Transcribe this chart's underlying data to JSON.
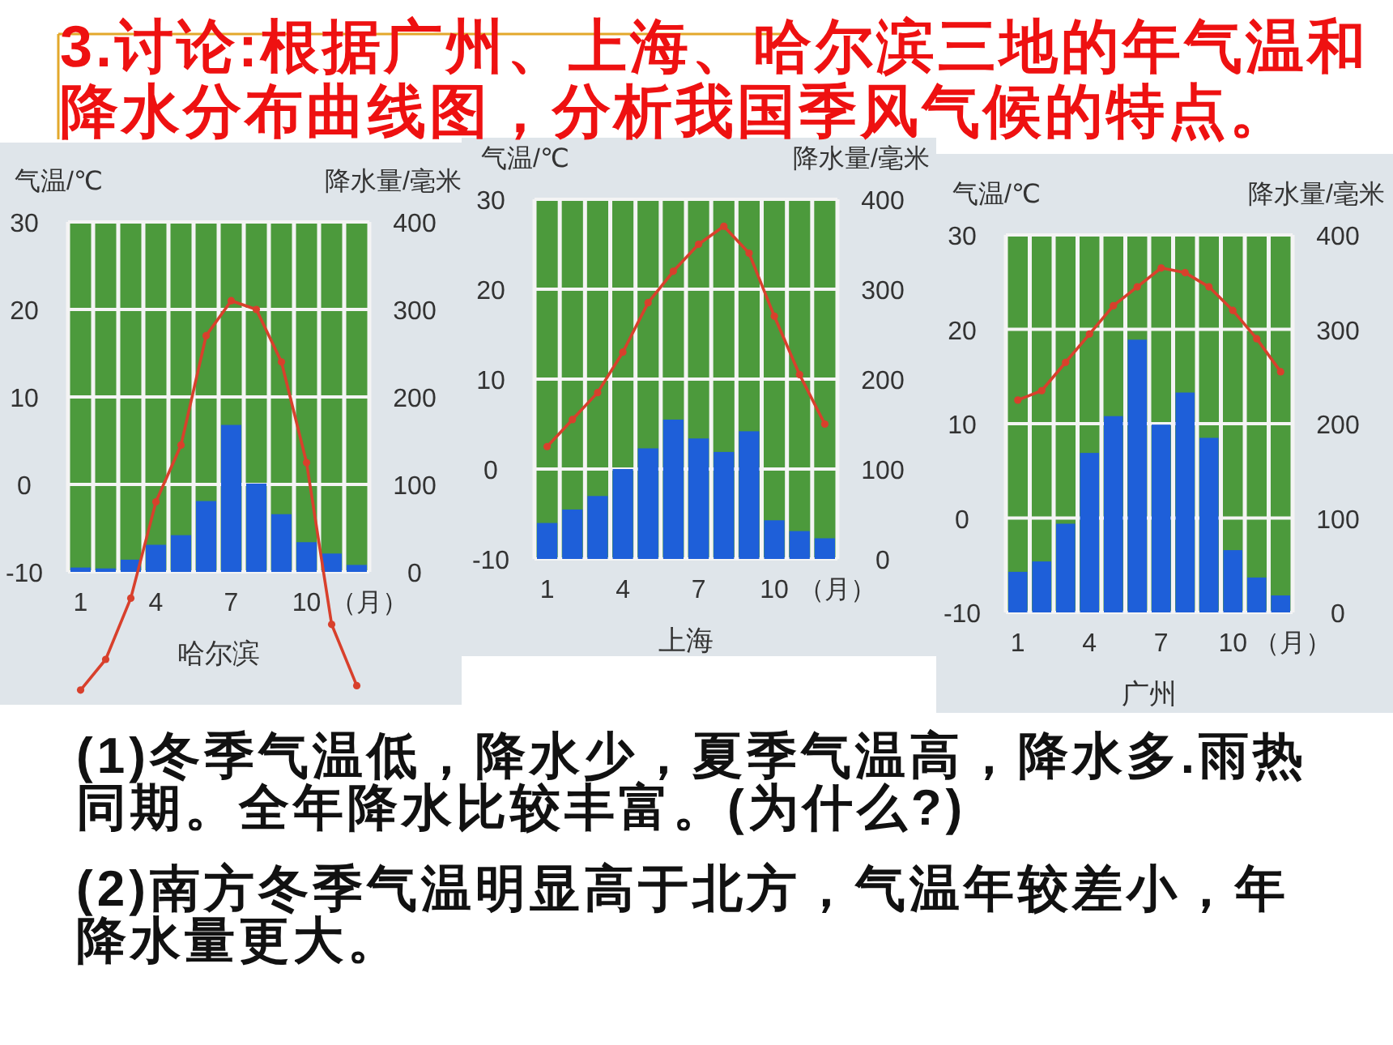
{
  "chart_data": [
    {
      "type": "other",
      "title": "3.讨论:根据广州、上海、哈尔滨三地的年气温和降水分布曲线图，分析我国季风气候的特点。"
    },
    {
      "type": "bar",
      "title": "哈尔滨",
      "categories": [
        "1",
        null,
        null,
        "4",
        null,
        null,
        "7",
        null,
        null,
        "10",
        null,
        null
      ],
      "xlabel": "（月）",
      "ylabel": "气温/℃",
      "y2label": "降水量/毫米",
      "ylim": [
        -25,
        30
      ],
      "yticks": [
        -10,
        0,
        10,
        20,
        30
      ],
      "y2lim": [
        -150,
        400
      ],
      "y2ticks": [
        0,
        100,
        200,
        300,
        400
      ],
      "grid": true,
      "series": [
        {
          "type": "bar",
          "axis": "y2",
          "color": "#1e5fd9",
          "values": [
            5,
            4,
            14,
            31,
            42,
            81,
            168,
            101,
            66,
            34,
            21,
            8
          ]
        },
        {
          "type": "line",
          "color": "#d8402c",
          "marker": "circle",
          "values": [
            -23.5,
            -20,
            -13,
            -2,
            4.5,
            17,
            21,
            20,
            14,
            2.5,
            -16,
            -23
          ]
        }
      ]
    },
    {
      "type": "bar",
      "title": "上海",
      "categories": [
        "1",
        null,
        null,
        "4",
        null,
        null,
        "7",
        null,
        null,
        "10",
        null,
        null
      ],
      "xlabel": "（月）",
      "ylabel": "气温/℃",
      "y2label": "降水量/毫米",
      "ylim": [
        -10,
        30
      ],
      "yticks": [
        -10,
        0,
        10,
        20,
        30
      ],
      "y2lim": [
        0,
        400
      ],
      "y2ticks": [
        0,
        100,
        200,
        300,
        400
      ],
      "grid": true,
      "series": [
        {
          "type": "bar",
          "axis": "y2",
          "color": "#1e5fd9",
          "values": [
            40,
            55,
            70,
            100,
            123,
            155,
            134,
            119,
            142,
            43,
            31,
            23
          ]
        },
        {
          "type": "line",
          "color": "#d8402c",
          "marker": "circle",
          "values": [
            2.5,
            5.5,
            8.5,
            13,
            18.5,
            22,
            25,
            27,
            24,
            17,
            10.5,
            5
          ]
        }
      ]
    },
    {
      "type": "bar",
      "title": "广州",
      "categories": [
        "1",
        null,
        null,
        "4",
        null,
        null,
        "7",
        null,
        null,
        "10",
        null,
        null
      ],
      "xlabel": "（月）",
      "ylabel": "气温/℃",
      "y2label": "降水量/毫米",
      "ylim": [
        -10,
        30
      ],
      "yticks": [
        -10,
        0,
        10,
        20,
        30
      ],
      "y2lim": [
        0,
        400
      ],
      "y2ticks": [
        0,
        100,
        200,
        300,
        400
      ],
      "grid": true,
      "series": [
        {
          "type": "bar",
          "axis": "y2",
          "color": "#1e5fd9",
          "values": [
            43,
            54,
            94,
            169,
            208,
            289,
            199,
            233,
            185,
            66,
            37,
            18
          ]
        },
        {
          "type": "line",
          "color": "#d8402c",
          "marker": "circle",
          "values": [
            12.5,
            13.5,
            16.5,
            19.5,
            22.5,
            24.5,
            26.5,
            26,
            24.5,
            22,
            19,
            15.5
          ]
        }
      ]
    },
    {
      "type": "other",
      "annotations": [
        "(1)冬季气温低，降水少，夏季气温高，降水多.雨热同期。全年降水比较丰富。(为什么?)",
        "(2)南方冬季气温明显高于北方，气温年较差小，年降水量更大。"
      ]
    }
  ]
}
